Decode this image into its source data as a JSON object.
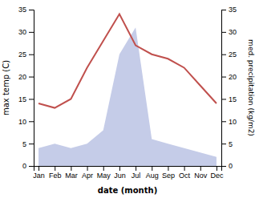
{
  "chart_data": {
    "type": "line",
    "categories": [
      "Jan",
      "Feb",
      "Mar",
      "Apr",
      "May",
      "Jun",
      "Jul",
      "Aug",
      "Sep",
      "Oct",
      "Nov",
      "Dec"
    ],
    "series": [
      {
        "type": "area",
        "axis": "y2",
        "color": "#c5cce8",
        "values": [
          4,
          5,
          4,
          5,
          8,
          25,
          31,
          6,
          5,
          4,
          3,
          2
        ]
      },
      {
        "type": "line",
        "color": "#c0504d",
        "values": [
          14,
          13,
          15,
          22,
          28,
          34,
          27,
          25,
          24,
          22,
          18,
          14
        ]
      }
    ],
    "xlabel": "date (month)",
    "ylabel": "max temp (C)",
    "y2label": "med. precipitation (kg/m2)",
    "ylim": [
      0,
      35
    ],
    "yticks": [
      0,
      5,
      10,
      15,
      20,
      25,
      30,
      35
    ],
    "y2lim": [
      0,
      35
    ],
    "y2ticks": [
      0,
      5,
      10,
      15,
      20,
      25,
      30,
      35
    ],
    "grid": false
  }
}
